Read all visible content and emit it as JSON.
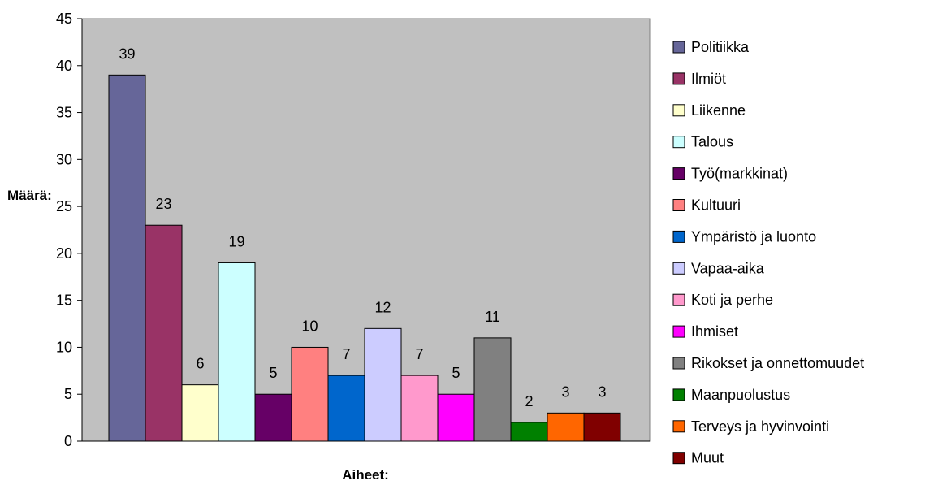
{
  "chart_data": {
    "type": "bar",
    "xlabel": "Aiheet:",
    "ylabel": "Määrä:",
    "ylim": [
      0,
      45
    ],
    "yticks": [
      0,
      5,
      10,
      15,
      20,
      25,
      30,
      35,
      40,
      45
    ],
    "grid": false,
    "plot_background": "#c0c0c0",
    "legend_position": "right",
    "series": [
      {
        "name": "Politiikka",
        "value": 39,
        "color": "#666699"
      },
      {
        "name": "Ilmiöt",
        "value": 23,
        "color": "#993366"
      },
      {
        "name": "Liikenne",
        "value": 6,
        "color": "#ffffcc"
      },
      {
        "name": "Talous",
        "value": 19,
        "color": "#ccffff"
      },
      {
        "name": "Työ(markkinat)",
        "value": 5,
        "color": "#660066"
      },
      {
        "name": "Kultuuri",
        "value": 10,
        "color": "#ff8080"
      },
      {
        "name": "Ympäristö ja luonto",
        "value": 7,
        "color": "#0066cc"
      },
      {
        "name": "Vapaa-aika",
        "value": 12,
        "color": "#ccccff"
      },
      {
        "name": "Koti ja perhe",
        "value": 7,
        "color": "#ff99cc"
      },
      {
        "name": "Ihmiset",
        "value": 5,
        "color": "#ff00ff"
      },
      {
        "name": "Rikokset ja onnettomuudet",
        "value": 11,
        "color": "#808080"
      },
      {
        "name": "Maanpuolustus",
        "value": 2,
        "color": "#008000"
      },
      {
        "name": "Terveys ja hyvinvointi",
        "value": 3,
        "color": "#ff6600"
      },
      {
        "name": "Muut",
        "value": 3,
        "color": "#800000"
      }
    ]
  }
}
